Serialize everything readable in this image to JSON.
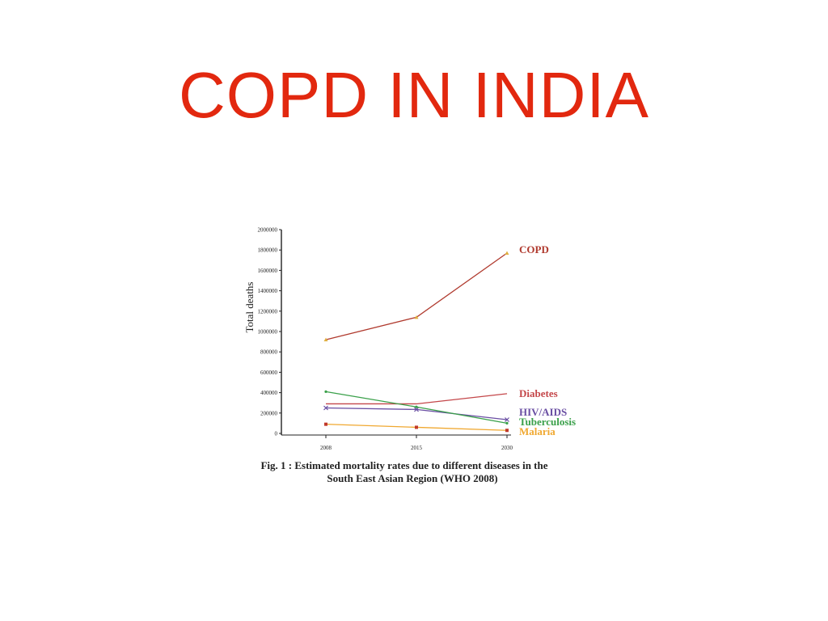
{
  "slide": {
    "title": "COPD IN INDIA"
  },
  "chart_data": {
    "type": "line",
    "x": [
      "2008",
      "2015",
      "2030"
    ],
    "ylabel": "Total deaths",
    "xlabel": "",
    "ylim": [
      0,
      2000000
    ],
    "yticks": [
      "0",
      "200000",
      "400000",
      "600000",
      "800000",
      "1000000",
      "1200000",
      "1400000",
      "1600000",
      "1800000",
      "2000000"
    ],
    "grid": false,
    "legend": "right, end of each line",
    "caption_line1": "Fig. 1 : Estimated mortality rates due to different diseases in the",
    "caption_line2": "South East Asian Region (WHO 2008)",
    "series": [
      {
        "name": "COPD",
        "values": [
          920000,
          1140000,
          1770000
        ],
        "color": "#b03a2e",
        "marker": "tri"
      },
      {
        "name": "Diabetes",
        "values": [
          290000,
          290000,
          390000
        ],
        "color": "#c4474a",
        "marker": "none"
      },
      {
        "name": "HIV/AIDS",
        "values": [
          250000,
          235000,
          135000
        ],
        "color": "#6a4fa3",
        "marker": "x"
      },
      {
        "name": "Tuberculosis",
        "values": [
          410000,
          260000,
          100000
        ],
        "color": "#3aa04a",
        "marker": "dot"
      },
      {
        "name": "Malaria",
        "values": [
          90000,
          60000,
          30000
        ],
        "color": "#f0a830",
        "marker": "square"
      }
    ]
  },
  "colors": {
    "title": "#e2280f",
    "axis": "#222222"
  }
}
